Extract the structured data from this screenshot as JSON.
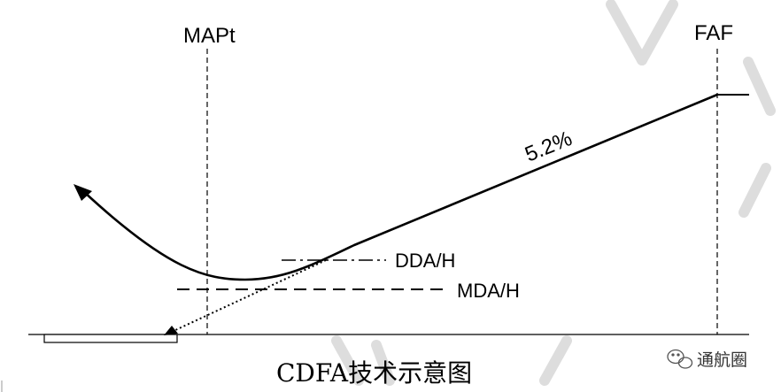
{
  "diagram": {
    "labels": {
      "mapt": "MAPt",
      "faf": "FAF",
      "gradient": "5.2%",
      "dda": "DDA/H",
      "mda": "MDA/H"
    },
    "caption": "CDFA技术示意图",
    "watermark": "通航圈",
    "colors": {
      "ink": "#000000",
      "background": "#ffffff",
      "watermark_stroke": "#dddddd"
    }
  }
}
